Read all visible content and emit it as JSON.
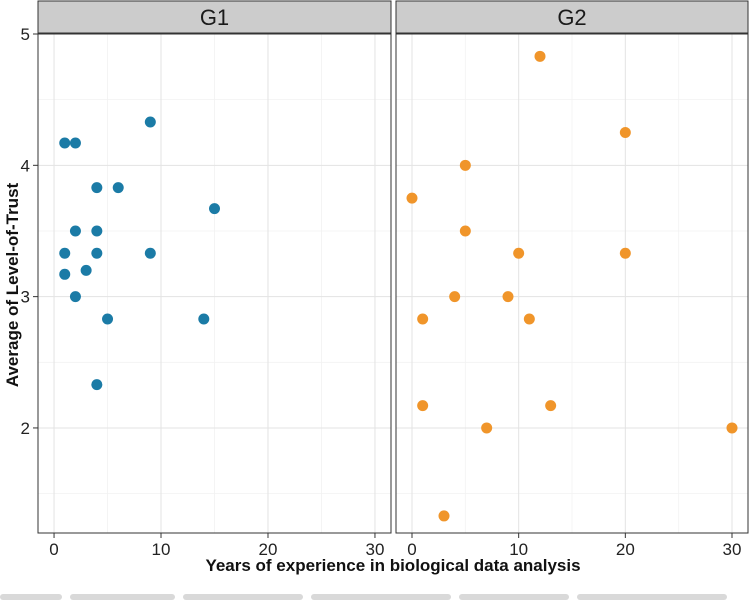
{
  "chart_data": {
    "type": "scatter",
    "facets": [
      {
        "name": "G1",
        "color": "#1b7ba6",
        "points": [
          {
            "x": 1,
            "y": 4.17
          },
          {
            "x": 2,
            "y": 4.17
          },
          {
            "x": 9,
            "y": 4.33
          },
          {
            "x": 4,
            "y": 3.83
          },
          {
            "x": 6,
            "y": 3.83
          },
          {
            "x": 15,
            "y": 3.67
          },
          {
            "x": 2,
            "y": 3.5
          },
          {
            "x": 4,
            "y": 3.5
          },
          {
            "x": 1,
            "y": 3.33
          },
          {
            "x": 4,
            "y": 3.33
          },
          {
            "x": 9,
            "y": 3.33
          },
          {
            "x": 3,
            "y": 3.2
          },
          {
            "x": 1,
            "y": 3.17
          },
          {
            "x": 2,
            "y": 3.0
          },
          {
            "x": 5,
            "y": 2.83
          },
          {
            "x": 14,
            "y": 2.83
          },
          {
            "x": 4,
            "y": 2.33
          }
        ]
      },
      {
        "name": "G2",
        "color": "#f0952a",
        "points": [
          {
            "x": 12,
            "y": 4.83
          },
          {
            "x": 20,
            "y": 4.25
          },
          {
            "x": 5,
            "y": 4.0
          },
          {
            "x": 0,
            "y": 3.75
          },
          {
            "x": 5,
            "y": 3.5
          },
          {
            "x": 10,
            "y": 3.33
          },
          {
            "x": 20,
            "y": 3.33
          },
          {
            "x": 4,
            "y": 3.0
          },
          {
            "x": 9,
            "y": 3.0
          },
          {
            "x": 1,
            "y": 2.83
          },
          {
            "x": 11,
            "y": 2.83
          },
          {
            "x": 1,
            "y": 2.17
          },
          {
            "x": 13,
            "y": 2.17
          },
          {
            "x": 7,
            "y": 2.0
          },
          {
            "x": 30,
            "y": 2.0
          },
          {
            "x": 3,
            "y": 1.33
          }
        ]
      }
    ],
    "xlabel": "Years of experience in biological data analysis",
    "ylabel": "Average of Level-of-Trust",
    "xlim": [
      -1.5,
      31.5
    ],
    "ylim": [
      1.2,
      5.0
    ],
    "xticks": [
      0,
      10,
      20,
      30
    ],
    "yticks": [
      2,
      3,
      4,
      5
    ],
    "xtick_labels": [
      "0",
      "10",
      "20",
      "30"
    ],
    "ytick_labels": [
      "2",
      "3",
      "4",
      "5"
    ],
    "grid": true
  }
}
